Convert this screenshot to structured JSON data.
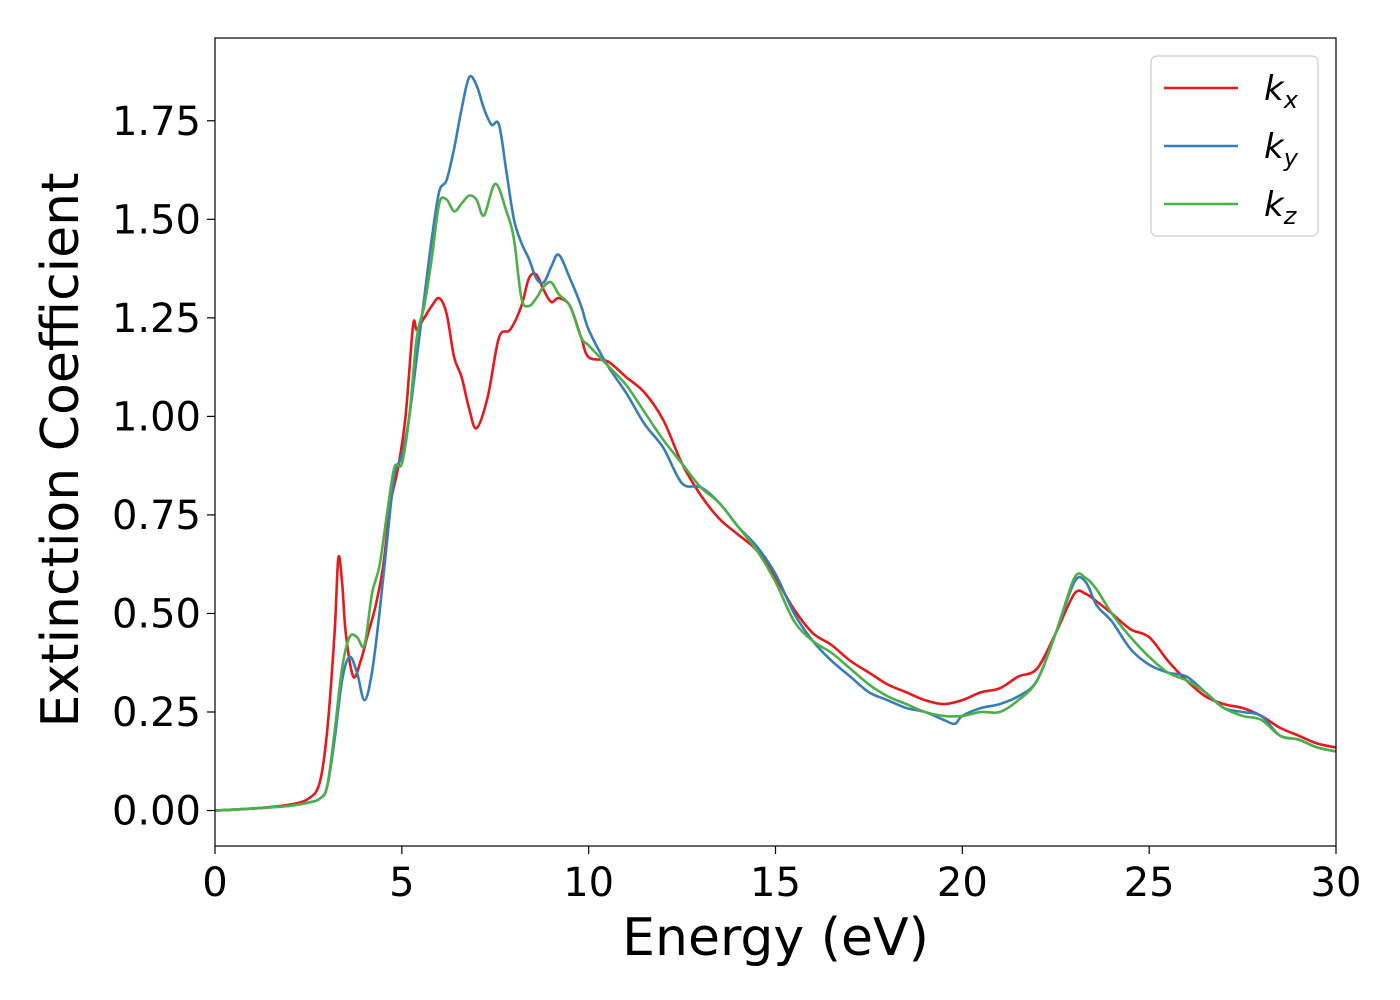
{
  "chart_data": {
    "type": "line",
    "xlabel": "Energy (eV)",
    "ylabel": "Extinction Coefficient",
    "xlim": [
      0,
      30
    ],
    "ylim": [
      -0.09,
      1.96
    ],
    "grid": false,
    "legend_position": "top-right",
    "x_ticks": [
      "0",
      "5",
      "10",
      "15",
      "20",
      "25",
      "30"
    ],
    "x_tick_values": [
      0,
      5,
      10,
      15,
      20,
      25,
      30
    ],
    "y_ticks": [
      "0.00",
      "0.25",
      "0.50",
      "0.75",
      "1.00",
      "1.25",
      "1.50",
      "1.75"
    ],
    "y_tick_values": [
      0,
      0.25,
      0.5,
      0.75,
      1.0,
      1.25,
      1.5,
      1.75
    ],
    "series": [
      {
        "name": "k",
        "subscript": "x",
        "color": "#e41a1c",
        "x": [
          0,
          1,
          2,
          2.5,
          2.8,
          3.0,
          3.2,
          3.3,
          3.4,
          3.5,
          3.7,
          3.9,
          4.1,
          4.3,
          4.5,
          4.7,
          4.9,
          5.1,
          5.3,
          5.4,
          5.6,
          5.8,
          6.0,
          6.2,
          6.4,
          6.6,
          6.8,
          7.0,
          7.3,
          7.6,
          7.9,
          8.2,
          8.4,
          8.6,
          8.8,
          9.0,
          9.2,
          9.5,
          9.8,
          10.0,
          10.5,
          11.0,
          11.5,
          12.0,
          12.5,
          13.0,
          13.5,
          14.0,
          14.5,
          15.0,
          15.5,
          16.0,
          16.5,
          17.0,
          17.5,
          18.0,
          18.5,
          19.0,
          19.5,
          20.0,
          20.5,
          21.0,
          21.5,
          22.0,
          22.5,
          23.0,
          23.3,
          23.6,
          24.0,
          24.5,
          25.0,
          25.5,
          26.0,
          26.5,
          27.0,
          27.5,
          28.0,
          28.5,
          29.0,
          29.5,
          30.0
        ],
        "values": [
          0.0,
          0.005,
          0.015,
          0.03,
          0.07,
          0.2,
          0.45,
          0.64,
          0.58,
          0.45,
          0.34,
          0.38,
          0.45,
          0.52,
          0.62,
          0.78,
          0.87,
          1.0,
          1.23,
          1.22,
          1.25,
          1.28,
          1.3,
          1.26,
          1.15,
          1.1,
          1.02,
          0.97,
          1.05,
          1.2,
          1.22,
          1.28,
          1.35,
          1.36,
          1.32,
          1.29,
          1.3,
          1.28,
          1.2,
          1.15,
          1.14,
          1.1,
          1.06,
          0.99,
          0.88,
          0.8,
          0.74,
          0.7,
          0.66,
          0.59,
          0.51,
          0.45,
          0.42,
          0.38,
          0.35,
          0.32,
          0.3,
          0.28,
          0.27,
          0.28,
          0.3,
          0.31,
          0.34,
          0.36,
          0.45,
          0.55,
          0.55,
          0.53,
          0.5,
          0.46,
          0.44,
          0.38,
          0.33,
          0.29,
          0.27,
          0.26,
          0.24,
          0.21,
          0.19,
          0.17,
          0.16
        ]
      },
      {
        "name": "k",
        "subscript": "y",
        "color": "#377eb8",
        "x": [
          0,
          1,
          2,
          2.5,
          2.8,
          3.0,
          3.2,
          3.4,
          3.6,
          3.8,
          4.0,
          4.2,
          4.4,
          4.6,
          4.8,
          5.0,
          5.2,
          5.4,
          5.6,
          5.8,
          6.0,
          6.2,
          6.4,
          6.6,
          6.8,
          7.0,
          7.2,
          7.4,
          7.6,
          7.8,
          8.0,
          8.2,
          8.4,
          8.6,
          8.8,
          9.0,
          9.2,
          9.5,
          9.8,
          10.0,
          10.5,
          11.0,
          11.5,
          12.0,
          12.5,
          13.0,
          13.5,
          14.0,
          14.5,
          15.0,
          15.5,
          16.0,
          16.5,
          17.0,
          17.5,
          18.0,
          18.5,
          19.0,
          19.5,
          19.8,
          20.0,
          20.5,
          21.0,
          21.5,
          22.0,
          22.5,
          23.0,
          23.3,
          23.6,
          24.0,
          24.5,
          25.0,
          25.5,
          26.0,
          26.5,
          27.0,
          27.5,
          28.0,
          28.5,
          29.0,
          29.5,
          30.0
        ],
        "values": [
          0.0,
          0.005,
          0.012,
          0.02,
          0.03,
          0.06,
          0.18,
          0.33,
          0.39,
          0.35,
          0.28,
          0.35,
          0.5,
          0.68,
          0.85,
          0.9,
          1.0,
          1.15,
          1.3,
          1.45,
          1.57,
          1.6,
          1.68,
          1.78,
          1.86,
          1.84,
          1.78,
          1.74,
          1.74,
          1.62,
          1.5,
          1.44,
          1.4,
          1.35,
          1.34,
          1.38,
          1.41,
          1.35,
          1.28,
          1.22,
          1.13,
          1.06,
          0.98,
          0.92,
          0.83,
          0.82,
          0.78,
          0.72,
          0.67,
          0.6,
          0.5,
          0.43,
          0.38,
          0.34,
          0.3,
          0.28,
          0.26,
          0.25,
          0.23,
          0.22,
          0.24,
          0.26,
          0.27,
          0.29,
          0.33,
          0.45,
          0.58,
          0.58,
          0.52,
          0.48,
          0.41,
          0.37,
          0.35,
          0.34,
          0.3,
          0.26,
          0.25,
          0.24,
          0.19,
          0.18,
          0.16,
          0.15
        ]
      },
      {
        "name": "k",
        "subscript": "z",
        "color": "#4daf4a",
        "x": [
          0,
          1,
          2,
          2.5,
          2.8,
          3.0,
          3.2,
          3.4,
          3.6,
          3.8,
          4.0,
          4.2,
          4.4,
          4.6,
          4.8,
          5.0,
          5.2,
          5.4,
          5.6,
          5.8,
          6.0,
          6.2,
          6.4,
          6.6,
          6.8,
          7.0,
          7.2,
          7.5,
          7.8,
          8.0,
          8.2,
          8.4,
          8.6,
          8.8,
          9.0,
          9.2,
          9.5,
          9.8,
          10.0,
          10.5,
          11.0,
          11.5,
          12.0,
          12.5,
          13.0,
          13.5,
          14.0,
          14.5,
          15.0,
          15.5,
          16.0,
          16.5,
          17.0,
          17.5,
          18.0,
          18.5,
          19.0,
          19.5,
          20.0,
          20.5,
          21.0,
          21.5,
          22.0,
          22.5,
          23.0,
          23.3,
          23.6,
          24.0,
          24.5,
          25.0,
          25.5,
          26.0,
          26.5,
          27.0,
          27.5,
          28.0,
          28.5,
          29.0,
          29.5,
          30.0
        ],
        "values": [
          0.0,
          0.005,
          0.012,
          0.02,
          0.03,
          0.06,
          0.2,
          0.36,
          0.44,
          0.44,
          0.42,
          0.55,
          0.62,
          0.75,
          0.87,
          0.88,
          1.0,
          1.2,
          1.28,
          1.4,
          1.54,
          1.55,
          1.52,
          1.54,
          1.56,
          1.55,
          1.51,
          1.59,
          1.52,
          1.45,
          1.3,
          1.28,
          1.3,
          1.33,
          1.34,
          1.31,
          1.28,
          1.2,
          1.18,
          1.13,
          1.08,
          1.01,
          0.94,
          0.88,
          0.82,
          0.78,
          0.72,
          0.66,
          0.58,
          0.48,
          0.43,
          0.4,
          0.36,
          0.32,
          0.29,
          0.27,
          0.25,
          0.24,
          0.24,
          0.25,
          0.25,
          0.28,
          0.33,
          0.45,
          0.59,
          0.59,
          0.56,
          0.5,
          0.44,
          0.39,
          0.35,
          0.33,
          0.3,
          0.26,
          0.24,
          0.23,
          0.19,
          0.18,
          0.16,
          0.15
        ]
      }
    ]
  }
}
